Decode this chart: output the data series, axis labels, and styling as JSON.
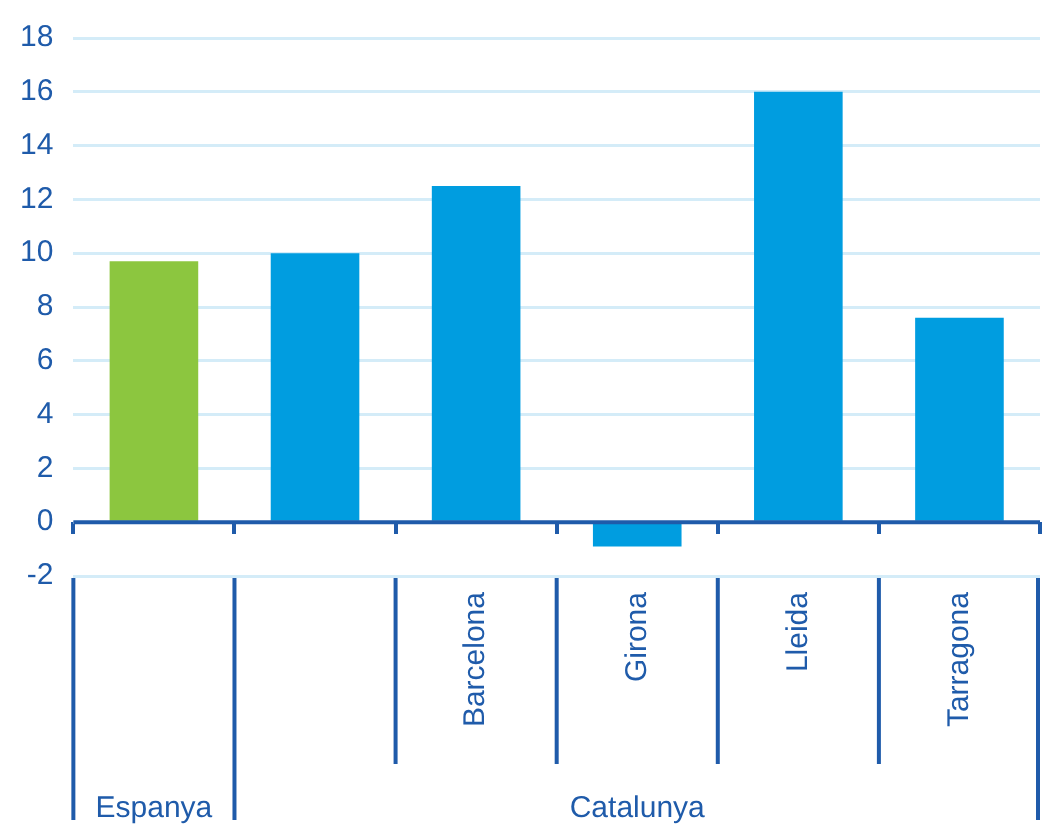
{
  "chart_data": {
    "type": "bar",
    "categories": [
      null,
      null,
      "Barcelona",
      "Girona",
      "Lleida",
      "Tarragona"
    ],
    "values": [
      9.7,
      10.0,
      12.5,
      -0.9,
      16.0,
      7.6
    ],
    "colors": [
      "#8cc63f",
      "#009de0",
      "#009de0",
      "#009de0",
      "#009de0",
      "#009de0"
    ],
    "ylim": [
      -2,
      18
    ],
    "yticks": [
      -2,
      0,
      2,
      4,
      6,
      8,
      10,
      12,
      14,
      16,
      18
    ],
    "grid": "y",
    "ref_lines": [
      {
        "axis": "y",
        "value": 0,
        "color": "#1f5baa"
      }
    ],
    "annotations": [
      "Espanya",
      "Catalunya"
    ]
  }
}
